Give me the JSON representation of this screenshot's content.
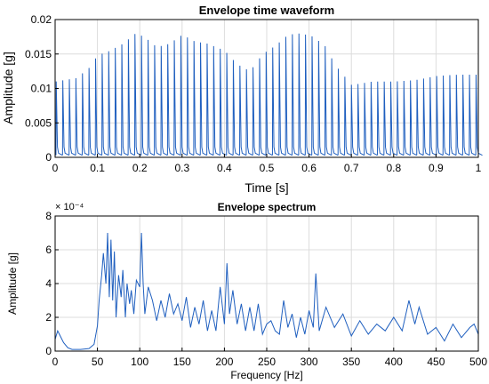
{
  "chart_data": [
    {
      "type": "line",
      "title": "Envelope time waveform",
      "xlabel": "Time [s]",
      "ylabel": "Amplitude [g]",
      "xlim": [
        0,
        1
      ],
      "ylim": [
        0,
        0.02
      ],
      "xticks": [
        "0",
        "0.1",
        "0.2",
        "0.3",
        "0.4",
        "0.5",
        "0.6",
        "0.7",
        "0.8",
        "0.9",
        "1"
      ],
      "yticks": [
        "0",
        "0.005",
        "0.01",
        "0.015",
        "0.02"
      ],
      "grid": true,
      "color": "#1f5fbf",
      "series": [
        {
          "x": [
            0.0,
            0.05,
            0.08,
            0.1,
            0.13,
            0.16,
            0.19,
            0.21,
            0.24,
            0.27,
            0.3,
            0.33,
            0.36,
            0.4,
            0.43,
            0.46,
            0.49,
            0.52,
            0.55,
            0.58,
            0.61,
            0.64,
            0.66,
            0.7,
            0.75,
            0.8,
            0.85,
            0.9,
            0.95,
            1.0
          ],
          "y": [
            0.011,
            0.0115,
            0.013,
            0.0148,
            0.0155,
            0.0165,
            0.018,
            0.0175,
            0.016,
            0.0165,
            0.0178,
            0.0168,
            0.0165,
            0.0155,
            0.0135,
            0.0125,
            0.015,
            0.0162,
            0.0178,
            0.018,
            0.0175,
            0.016,
            0.0135,
            0.0105,
            0.011,
            0.011,
            0.0112,
            0.0118,
            0.012,
            0.012
          ]
        }
      ]
    },
    {
      "type": "line",
      "title": "Envelope spectrum",
      "exponent_label": "× 10⁻⁴",
      "xlabel": "Frequency [Hz]",
      "ylabel": "Amplitude [g]",
      "xlim": [
        0,
        500
      ],
      "ylim": [
        0,
        8
      ],
      "xticks": [
        "0",
        "50",
        "100",
        "150",
        "200",
        "250",
        "300",
        "350",
        "400",
        "450",
        "500"
      ],
      "yticks": [
        "0",
        "2",
        "4",
        "6",
        "8"
      ],
      "grid": true,
      "color": "#1f5fbf",
      "series": [
        {
          "x": [
            0,
            3,
            6,
            10,
            15,
            20,
            30,
            40,
            46,
            50,
            52,
            55,
            57,
            60,
            62,
            64,
            66,
            68,
            70,
            72,
            75,
            78,
            80,
            83,
            85,
            88,
            90,
            93,
            96,
            100,
            102,
            104,
            106,
            110,
            115,
            120,
            125,
            130,
            135,
            140,
            145,
            150,
            155,
            160,
            165,
            170,
            175,
            180,
            185,
            190,
            195,
            200,
            203,
            206,
            210,
            215,
            220,
            225,
            230,
            235,
            240,
            245,
            250,
            255,
            260,
            265,
            270,
            275,
            280,
            285,
            290,
            295,
            300,
            305,
            308,
            312,
            320,
            330,
            340,
            350,
            360,
            370,
            380,
            390,
            400,
            410,
            418,
            425,
            430,
            440,
            450,
            460,
            470,
            480,
            490,
            495,
            500
          ],
          "y": [
            0.7,
            1.2,
            0.9,
            0.5,
            0.2,
            0.1,
            0.1,
            0.15,
            0.4,
            1.5,
            3.0,
            4.5,
            5.8,
            4.0,
            7.0,
            3.2,
            6.6,
            3.0,
            5.9,
            2.0,
            4.5,
            3.2,
            4.8,
            2.0,
            4.0,
            2.8,
            3.6,
            2.2,
            4.2,
            3.8,
            7.0,
            4.0,
            2.2,
            3.8,
            3.0,
            1.8,
            3.0,
            2.0,
            3.4,
            2.2,
            2.8,
            1.8,
            3.2,
            1.4,
            2.6,
            1.6,
            3.0,
            1.2,
            2.4,
            1.2,
            3.8,
            1.6,
            5.2,
            2.2,
            3.6,
            1.6,
            2.8,
            1.2,
            2.6,
            1.2,
            2.8,
            1.0,
            1.6,
            1.8,
            1.2,
            1.0,
            3.0,
            1.4,
            2.2,
            0.8,
            2.0,
            1.0,
            2.4,
            1.4,
            4.6,
            1.2,
            2.6,
            1.4,
            2.2,
            0.9,
            1.8,
            1.0,
            1.6,
            1.2,
            2.0,
            1.2,
            3.0,
            1.6,
            2.6,
            1.0,
            1.4,
            0.6,
            1.6,
            0.8,
            1.4,
            1.6,
            1.0
          ]
        }
      ]
    }
  ]
}
